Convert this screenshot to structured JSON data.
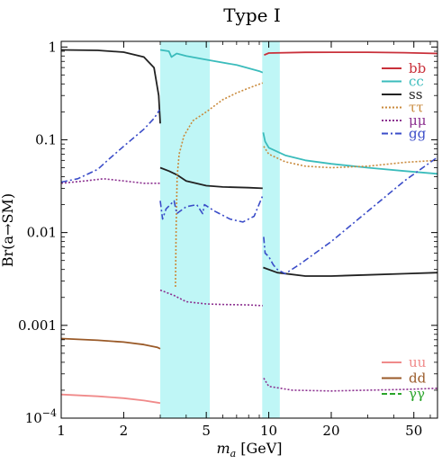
{
  "chart_data": {
    "type": "line",
    "title": "Type I",
    "xlabel_italic": "m",
    "xlabel_sub": "a",
    "xlabel_rest": " [GeV]",
    "ylabel": "Br(a→SM)",
    "x_scale": "log",
    "y_scale": "log",
    "xlim": [
      1,
      65
    ],
    "ylim": [
      0.0001,
      1.15
    ],
    "x_ticks": [
      {
        "value": 1,
        "label": "1"
      },
      {
        "value": 2,
        "label": "2"
      },
      {
        "value": 5,
        "label": "5"
      },
      {
        "value": 10,
        "label": "10"
      },
      {
        "value": 20,
        "label": "20"
      },
      {
        "value": 50,
        "label": "50"
      }
    ],
    "y_ticks": [
      {
        "value": 1,
        "label": "1"
      },
      {
        "value": 0.1,
        "label": "0.1"
      },
      {
        "value": 0.01,
        "label": "0.01"
      },
      {
        "value": 0.001,
        "label": "0.001"
      },
      {
        "value": 0.0001,
        "label": "10",
        "sup": "−4"
      }
    ],
    "shaded_bands": [
      {
        "x": [
          3.0,
          5.2
        ],
        "color": "#bff6f6"
      },
      {
        "x": [
          9.3,
          11.3
        ],
        "color": "#bff6f6"
      }
    ],
    "legend_upper": {
      "placement": "top-right",
      "entries": [
        "bb",
        "cc",
        "ss",
        "ττ",
        "μμ",
        "gg"
      ]
    },
    "legend_lower": {
      "placement": "bottom-right",
      "entries": [
        "uu",
        "dd",
        "γγ"
      ]
    },
    "series": [
      {
        "name": "bb",
        "color": "#c9303a",
        "dash": "solid",
        "segments": [
          [
            [
              9.5,
              0.82
            ],
            [
              10,
              0.86
            ],
            [
              15,
              0.875
            ],
            [
              20,
              0.878
            ],
            [
              30,
              0.878
            ],
            [
              45,
              0.868
            ],
            [
              65,
              0.85
            ]
          ]
        ]
      },
      {
        "name": "cc",
        "color": "#3bbcbc",
        "dash": "solid",
        "segments": [
          [
            [
              3.0,
              0.93
            ],
            [
              3.3,
              0.9
            ],
            [
              3.4,
              0.78
            ],
            [
              3.6,
              0.85
            ],
            [
              4,
              0.8
            ],
            [
              5,
              0.73
            ],
            [
              7,
              0.64
            ],
            [
              9,
              0.55
            ],
            [
              9.35,
              0.53
            ]
          ],
          [
            [
              9.4,
              0.12
            ],
            [
              9.6,
              0.096
            ],
            [
              10,
              0.082
            ],
            [
              12,
              0.068
            ],
            [
              15,
              0.06
            ],
            [
              20,
              0.055
            ],
            [
              30,
              0.05
            ],
            [
              45,
              0.046
            ],
            [
              65,
              0.043
            ]
          ]
        ]
      },
      {
        "name": "ss",
        "color": "#222222",
        "dash": "solid",
        "segments": [
          [
            [
              1,
              0.93
            ],
            [
              1.5,
              0.92
            ],
            [
              2,
              0.88
            ],
            [
              2.5,
              0.78
            ],
            [
              2.8,
              0.6
            ],
            [
              2.95,
              0.3
            ],
            [
              3.0,
              0.15
            ]
          ],
          [
            [
              3.0,
              0.05
            ],
            [
              3.3,
              0.046
            ],
            [
              3.6,
              0.042
            ],
            [
              4,
              0.036
            ],
            [
              5,
              0.032
            ],
            [
              6,
              0.031
            ],
            [
              8,
              0.0305
            ],
            [
              9.35,
              0.03
            ]
          ],
          [
            [
              9.4,
              0.0042
            ],
            [
              11,
              0.0037
            ],
            [
              15,
              0.0034
            ],
            [
              20,
              0.0034
            ],
            [
              30,
              0.0035
            ],
            [
              45,
              0.0036
            ],
            [
              65,
              0.0037
            ]
          ]
        ]
      },
      {
        "name": "ττ",
        "color": "#c98a3c",
        "dash": "dotted",
        "segments": [
          [
            [
              3.55,
              0.0026
            ],
            [
              3.58,
              0.012
            ],
            [
              3.62,
              0.04
            ],
            [
              3.7,
              0.07
            ],
            [
              3.9,
              0.11
            ],
            [
              4.3,
              0.16
            ],
            [
              5,
              0.2
            ],
            [
              6,
              0.27
            ],
            [
              7,
              0.32
            ],
            [
              8,
              0.36
            ],
            [
              9.35,
              0.41
            ]
          ],
          [
            [
              9.45,
              0.085
            ],
            [
              10,
              0.07
            ],
            [
              12,
              0.058
            ],
            [
              15,
              0.052
            ],
            [
              20,
              0.05
            ],
            [
              30,
              0.052
            ],
            [
              45,
              0.057
            ],
            [
              65,
              0.06
            ]
          ]
        ]
      },
      {
        "name": "μμ",
        "color": "#8b2f8f",
        "dash": "dotted",
        "segments": [
          [
            [
              1,
              0.034
            ],
            [
              1.3,
              0.036
            ],
            [
              1.6,
              0.038
            ],
            [
              2,
              0.036
            ],
            [
              2.5,
              0.034
            ],
            [
              3.0,
              0.034
            ]
          ],
          [
            [
              3.0,
              0.0024
            ],
            [
              3.5,
              0.0021
            ],
            [
              4,
              0.0018
            ],
            [
              5,
              0.0017
            ],
            [
              6,
              0.00168
            ],
            [
              8,
              0.00166
            ],
            [
              9.35,
              0.00163
            ]
          ],
          [
            [
              9.45,
              0.00027
            ],
            [
              10,
              0.00022
            ],
            [
              13,
              0.0002
            ],
            [
              20,
              0.000196
            ],
            [
              30,
              0.0002
            ],
            [
              45,
              0.000204
            ],
            [
              65,
              0.00021
            ]
          ]
        ]
      },
      {
        "name": "gg",
        "color": "#3a4cc8",
        "dash": "dashdot",
        "segments": [
          [
            [
              1,
              0.035
            ],
            [
              1.2,
              0.038
            ],
            [
              1.5,
              0.048
            ],
            [
              1.7,
              0.062
            ],
            [
              2,
              0.085
            ],
            [
              2.5,
              0.13
            ],
            [
              2.8,
              0.17
            ],
            [
              2.98,
              0.21
            ]
          ],
          [
            [
              3.0,
              0.022
            ],
            [
              3.08,
              0.014
            ],
            [
              3.2,
              0.018
            ],
            [
              3.5,
              0.022
            ],
            [
              3.6,
              0.016
            ],
            [
              4,
              0.019
            ],
            [
              4.5,
              0.02
            ],
            [
              4.8,
              0.016
            ],
            [
              4.9,
              0.02
            ],
            [
              5.5,
              0.017
            ],
            [
              6.5,
              0.014
            ],
            [
              7.5,
              0.013
            ],
            [
              8.5,
              0.015
            ],
            [
              9.35,
              0.025
            ]
          ],
          [
            [
              9.45,
              0.009
            ],
            [
              9.6,
              0.006
            ],
            [
              10,
              0.0055
            ],
            [
              10.5,
              0.0045
            ],
            [
              11,
              0.004
            ],
            [
              12,
              0.0036
            ],
            [
              14,
              0.0045
            ],
            [
              20,
              0.008
            ],
            [
              30,
              0.017
            ],
            [
              45,
              0.036
            ],
            [
              65,
              0.065
            ]
          ]
        ]
      },
      {
        "name": "uu",
        "color": "#f08a8a",
        "dash": "solid",
        "segments": [
          [
            [
              1,
              0.00018
            ],
            [
              1.5,
              0.000172
            ],
            [
              2,
              0.000164
            ],
            [
              2.5,
              0.000155
            ],
            [
              2.9,
              0.000147
            ],
            [
              3.0,
              0.000145
            ]
          ]
        ]
      },
      {
        "name": "dd",
        "color": "#9a5a28",
        "dash": "solid",
        "segments": [
          [
            [
              1,
              0.00072
            ],
            [
              1.5,
              0.00069
            ],
            [
              2,
              0.00066
            ],
            [
              2.5,
              0.00062
            ],
            [
              2.9,
              0.00058
            ],
            [
              3.0,
              0.00056
            ]
          ]
        ]
      },
      {
        "name": "γγ",
        "color": "#2aa42a",
        "dash": "dashed",
        "segments": []
      }
    ]
  }
}
